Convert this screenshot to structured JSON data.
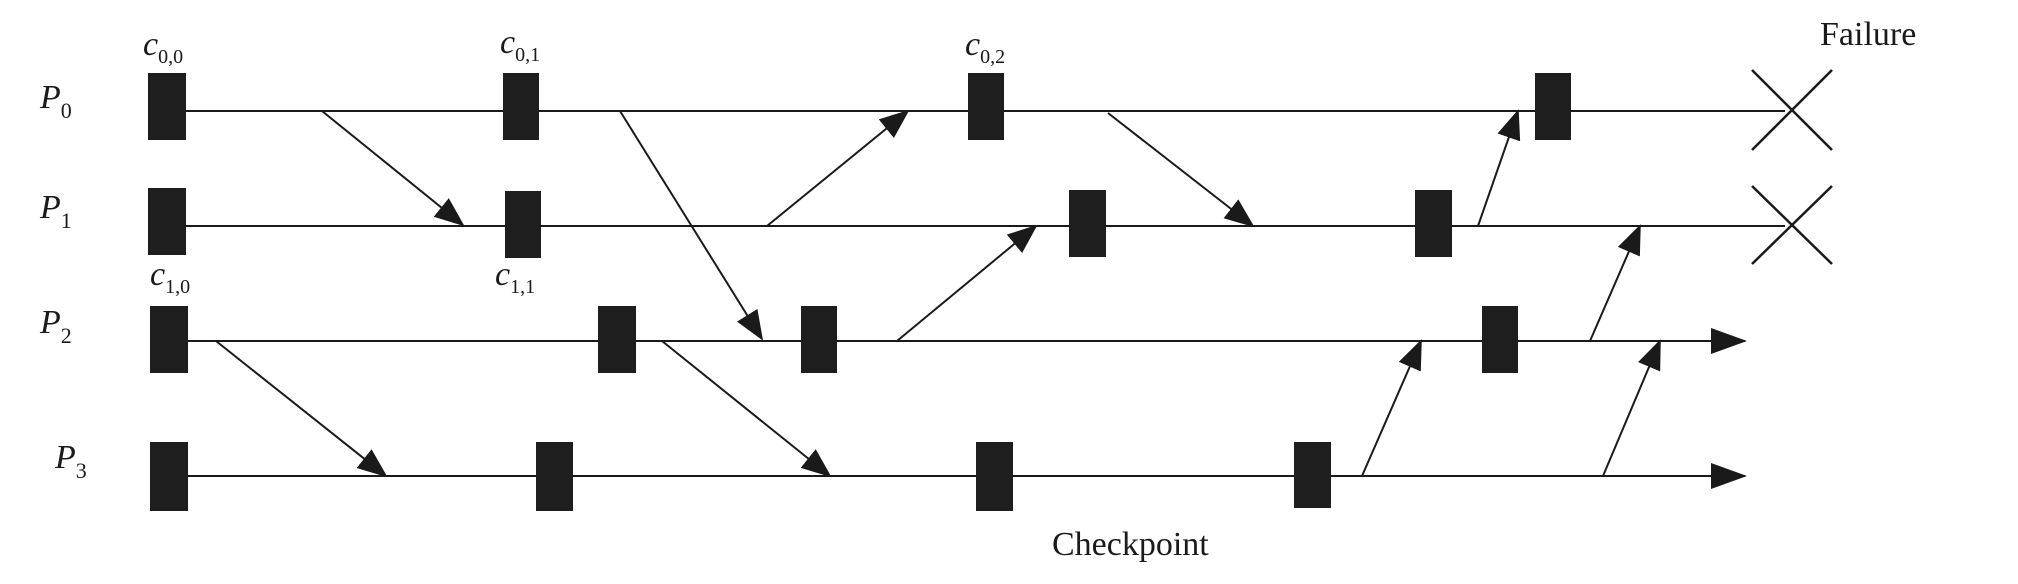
{
  "processes": [
    {
      "id": "p0",
      "label": "P",
      "sub": "0",
      "ends_in": "failure"
    },
    {
      "id": "p1",
      "label": "P",
      "sub": "1",
      "ends_in": "failure"
    },
    {
      "id": "p2",
      "label": "P",
      "sub": "2",
      "ends_in": "arrow"
    },
    {
      "id": "p3",
      "label": "P",
      "sub": "3",
      "ends_in": "arrow"
    }
  ],
  "checkpoint_labels": [
    {
      "id": "c00",
      "label": "c",
      "sub": "0,0"
    },
    {
      "id": "c01",
      "label": "c",
      "sub": "0,1"
    },
    {
      "id": "c02",
      "label": "c",
      "sub": "0,2"
    },
    {
      "id": "c10",
      "label": "c",
      "sub": "1,0"
    },
    {
      "id": "c11",
      "label": "c",
      "sub": "1,1"
    }
  ],
  "failure_label": "Failure",
  "checkpoint_caption": "Checkpoint",
  "colors": {
    "ink": "#1a1a1a",
    "checkpoint": "#1e1e1e",
    "background": "#ffffff"
  }
}
